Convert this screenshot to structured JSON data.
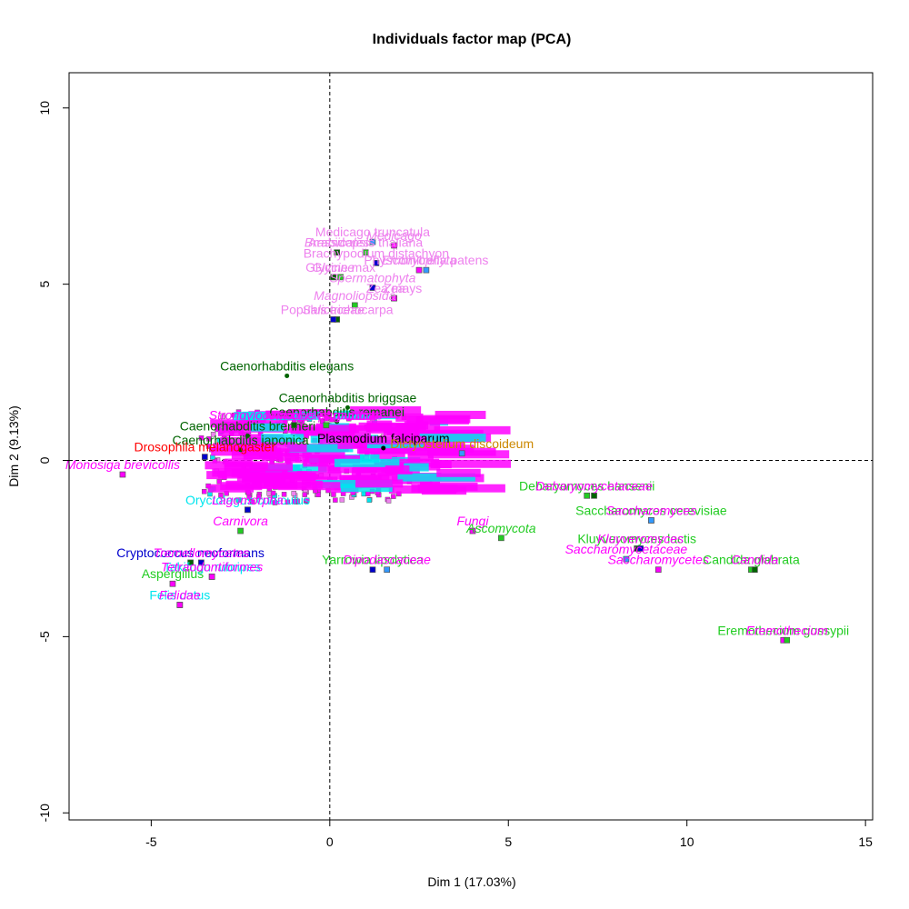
{
  "chart_data": {
    "type": "scatter",
    "title": "Individuals factor map (PCA)",
    "xlabel": "Dim 1 (17.03%)",
    "ylabel": "Dim 2 (9.13%)",
    "xlim": [
      -7.3,
      15.2
    ],
    "ylim": [
      -10.2,
      11.0
    ],
    "x_ticks": [
      -5,
      0,
      5,
      10,
      15
    ],
    "y_ticks": [
      -10,
      -5,
      0,
      5,
      10
    ],
    "x_tick_labels": [
      "-5",
      "0",
      "5",
      "10",
      "15"
    ],
    "y_tick_labels": [
      "-10",
      "-5",
      "0",
      "5",
      "10"
    ],
    "reference_lines": {
      "x": 0,
      "y": 0,
      "style": "dashed"
    },
    "grid": false,
    "colors": {
      "plants": "#ee82ee",
      "metazoa": "#ff00ff",
      "nematodes": "#006400",
      "fungi_species": "#22cc22",
      "eukaryote_misc": "#00e5ee",
      "crypto": "#0000cd",
      "other": "#cc8800",
      "red": "#ff0000",
      "black": "#000000"
    },
    "points": [
      {
        "label": "Medicago truncatula",
        "x": 1.2,
        "y": 6.2,
        "group": "plants"
      },
      {
        "label": "Medicago",
        "x": 1.8,
        "y": 6.1,
        "group": "plants",
        "italic": true
      },
      {
        "label": "Arabidopsis thaliana",
        "x": 1.0,
        "y": 5.9,
        "group": "plants"
      },
      {
        "label": "Brassicales",
        "x": 0.2,
        "y": 5.9,
        "group": "plants",
        "italic": true
      },
      {
        "label": "Brachypodium distachyon",
        "x": 1.3,
        "y": 5.6,
        "group": "plants"
      },
      {
        "label": "Physcomitrella patens",
        "x": 2.7,
        "y": 5.4,
        "group": "plants"
      },
      {
        "label": "Embryophyta",
        "x": 2.5,
        "y": 5.4,
        "group": "plants",
        "italic": true
      },
      {
        "label": "Glycine max",
        "x": 0.3,
        "y": 5.2,
        "group": "plants"
      },
      {
        "label": "Glycine",
        "x": 0.1,
        "y": 5.2,
        "group": "plants",
        "italic": true
      },
      {
        "label": "Spermatophyta",
        "x": 1.2,
        "y": 4.9,
        "group": "plants",
        "italic": true
      },
      {
        "label": "Zea mays",
        "x": 1.8,
        "y": 4.6,
        "group": "plants"
      },
      {
        "label": "Zea",
        "x": 1.8,
        "y": 4.6,
        "group": "plants",
        "italic": true
      },
      {
        "label": "Magnoliopsida",
        "x": 0.7,
        "y": 4.4,
        "group": "plants",
        "italic": true
      },
      {
        "label": "Populus trichocarpa",
        "x": 0.2,
        "y": 4.0,
        "group": "plants"
      },
      {
        "label": "Salicaceae",
        "x": 0.1,
        "y": 4.0,
        "group": "plants",
        "italic": true
      },
      {
        "label": "Caenorhabditis elegans",
        "x": -1.2,
        "y": 2.4,
        "group": "nematodes"
      },
      {
        "label": "Caenorhabditis briggsae",
        "x": 0.5,
        "y": 1.5,
        "group": "nematodes"
      },
      {
        "label": "Caenorhabditis brenneri",
        "x": -2.3,
        "y": 0.7,
        "group": "nematodes"
      },
      {
        "label": "Caenorhabditis remanei",
        "x": 0.2,
        "y": 1.1,
        "group": "nematodes"
      },
      {
        "label": "Caenorhabditis japonica",
        "x": -2.5,
        "y": 0.3,
        "group": "nematodes"
      },
      {
        "label": "Plasmodium falciparum",
        "x": 1.5,
        "y": 0.35,
        "group": "black"
      },
      {
        "label": "Aspergillus",
        "x": -4.4,
        "y": -3.5,
        "group": "fungi_species"
      },
      {
        "label": "Debaryomyces hansenii",
        "x": 7.2,
        "y": -1.0,
        "group": "fungi_species"
      },
      {
        "label": "Debaryomycetaceae",
        "x": 7.4,
        "y": -1.0,
        "group": "metazoa",
        "italic": true
      },
      {
        "label": "Saccharomyces cerevisiae",
        "x": 9.0,
        "y": -1.7,
        "group": "fungi_species"
      },
      {
        "label": "Saccharomyces",
        "x": 9.0,
        "y": -1.7,
        "group": "metazoa",
        "italic": true
      },
      {
        "label": "Fungi",
        "x": 4.0,
        "y": -2.0,
        "group": "metazoa",
        "italic": true
      },
      {
        "label": "Ascomycota",
        "x": 4.8,
        "y": -2.2,
        "group": "fungi_species",
        "italic": true
      },
      {
        "label": "Kluyveromyces lactis",
        "x": 8.6,
        "y": -2.5,
        "group": "fungi_species"
      },
      {
        "label": "Kluyveromyces",
        "x": 8.7,
        "y": -2.5,
        "group": "metazoa",
        "italic": true
      },
      {
        "label": "Saccharomycetaceae",
        "x": 8.3,
        "y": -2.8,
        "group": "metazoa",
        "italic": true
      },
      {
        "label": "Saccharomycetes",
        "x": 9.2,
        "y": -3.1,
        "group": "metazoa",
        "italic": true
      },
      {
        "label": "Candida glabrata",
        "x": 11.8,
        "y": -3.1,
        "group": "fungi_species"
      },
      {
        "label": "Candida",
        "x": 11.9,
        "y": -3.1,
        "group": "metazoa",
        "italic": true
      },
      {
        "label": "Yarrowia lipolytica",
        "x": 1.2,
        "y": -3.1,
        "group": "fungi_species"
      },
      {
        "label": "Dipodascaceae",
        "x": 1.6,
        "y": -3.1,
        "group": "metazoa",
        "italic": true
      },
      {
        "label": "Eremothecium gossypii",
        "x": 12.7,
        "y": -5.1,
        "group": "fungi_species"
      },
      {
        "label": "Eremothecium",
        "x": 12.8,
        "y": -5.1,
        "group": "metazoa",
        "italic": true
      },
      {
        "label": "Cryptococcus neoformans",
        "x": -3.9,
        "y": -2.9,
        "group": "crypto"
      },
      {
        "label": "Tremellomycetes",
        "x": -3.6,
        "y": -2.9,
        "group": "metazoa",
        "italic": true
      },
      {
        "label": "Felis catus",
        "x": -4.2,
        "y": -4.1,
        "group": "eukaryote_misc"
      },
      {
        "label": "Felidae",
        "x": -4.2,
        "y": -4.1,
        "group": "metazoa",
        "italic": true
      },
      {
        "label": "Carnivora",
        "x": -2.5,
        "y": -2.0,
        "group": "metazoa",
        "italic": true
      },
      {
        "label": "Oryctolagus cuniculus",
        "x": -2.3,
        "y": -1.4,
        "group": "eukaryote_misc"
      },
      {
        "label": "Lagomorpha",
        "x": -2.3,
        "y": -1.4,
        "group": "metazoa",
        "italic": true
      },
      {
        "label": "Takifugu rubripes",
        "x": -3.3,
        "y": -3.3,
        "group": "eukaryote_misc"
      },
      {
        "label": "Tetraodontiformes",
        "x": -3.3,
        "y": -3.3,
        "group": "metazoa",
        "italic": true
      },
      {
        "label": "Anopheles gambiae",
        "x": -0.1,
        "y": 1.0,
        "group": "metazoa"
      },
      {
        "label": "Strongylocentrotus purpuratus",
        "x": -1.0,
        "y": 1.0,
        "group": "metazoa",
        "italic": true
      },
      {
        "label": "Drosophila melanogaster",
        "x": -3.5,
        "y": 0.1,
        "group": "red"
      },
      {
        "label": "Dictyostelium discoideum",
        "x": 3.7,
        "y": 0.2,
        "group": "other"
      },
      {
        "label": "Monosiga brevicollis",
        "x": -5.8,
        "y": -0.4,
        "group": "metazoa",
        "italic": true
      }
    ],
    "marker_colors": [
      "#3399ff",
      "#ff00ff",
      "#22cc22",
      "#006400",
      "#0000cd"
    ]
  }
}
